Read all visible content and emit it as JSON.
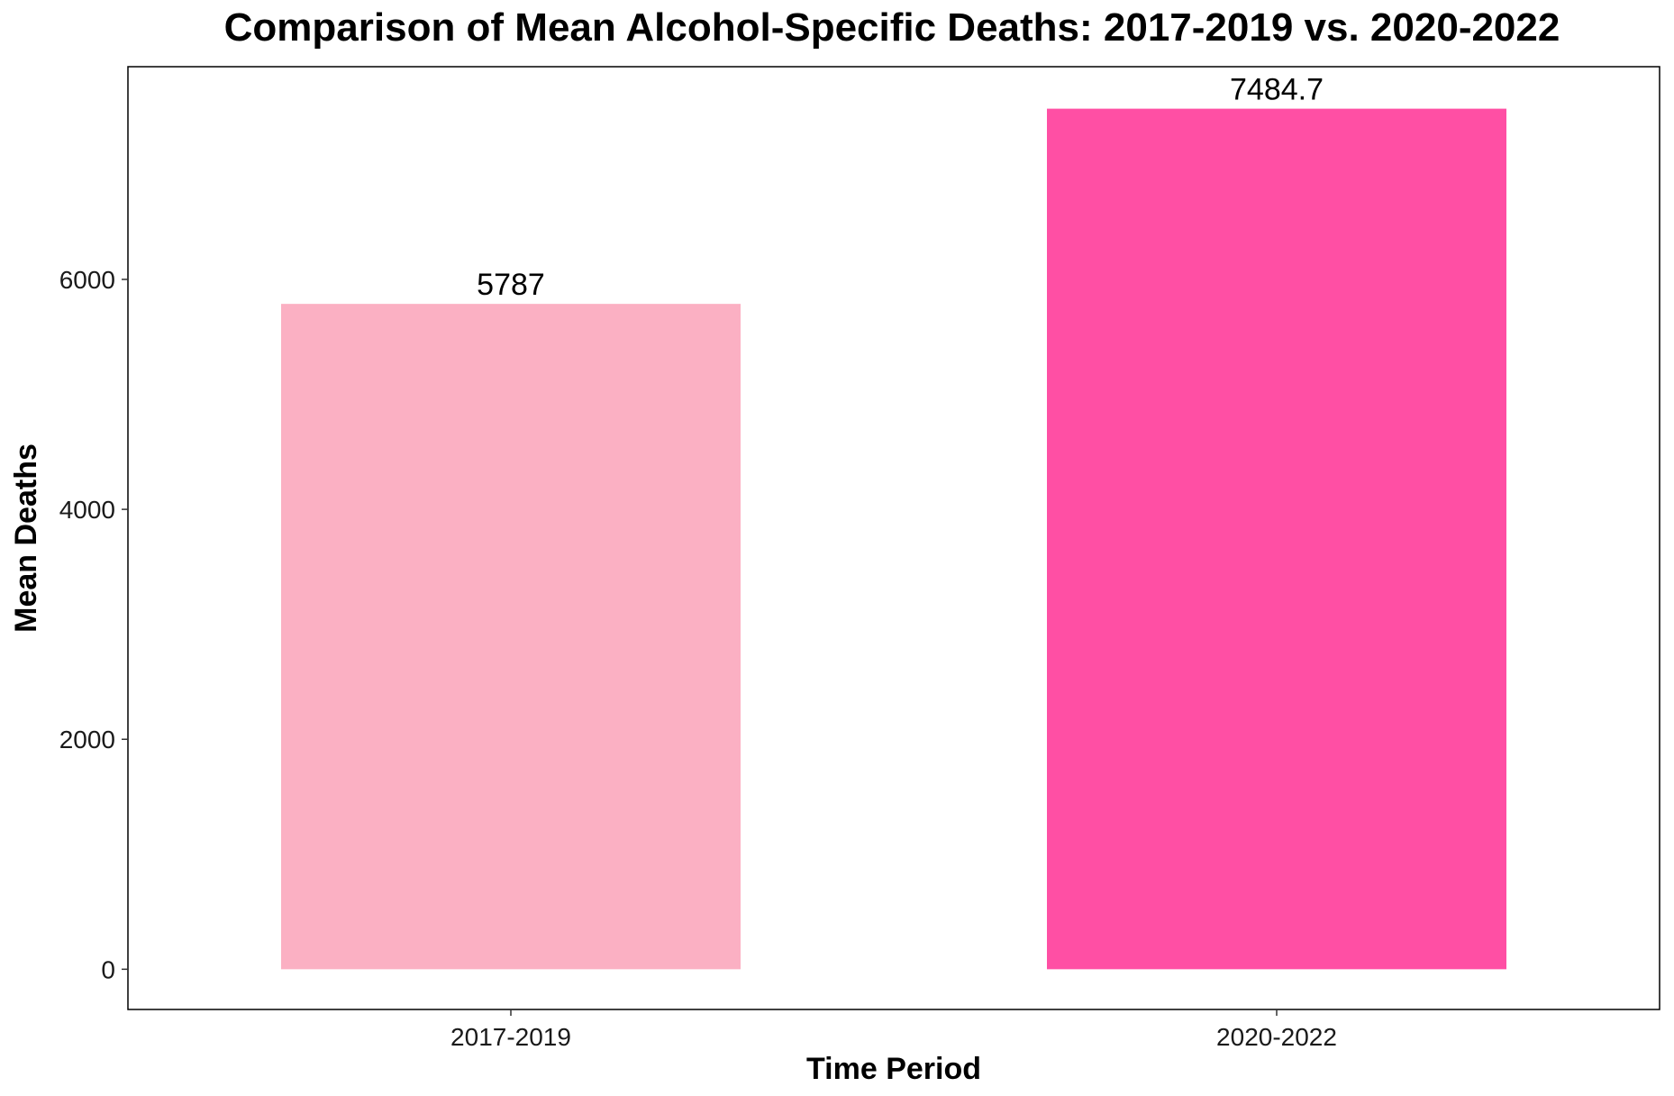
{
  "chart_data": {
    "type": "bar",
    "title": "Comparison of Mean Alcohol-Specific Deaths: 2017-2019 vs. 2020-2022",
    "xlabel": "Time Period",
    "ylabel": "Mean Deaths",
    "categories": [
      "2017-2019",
      "2020-2022"
    ],
    "values": [
      5787,
      7484.7
    ],
    "value_labels": [
      "5787",
      "7484.7"
    ],
    "bar_colors": [
      "#FBB0C3",
      "#FF4FA4"
    ],
    "y_ticks": [
      0,
      2000,
      4000,
      6000
    ],
    "y_tick_labels": [
      "0",
      "2000",
      "4000",
      "6000"
    ],
    "ylim": [
      -350,
      7850
    ],
    "grid": false,
    "legend": "none"
  }
}
